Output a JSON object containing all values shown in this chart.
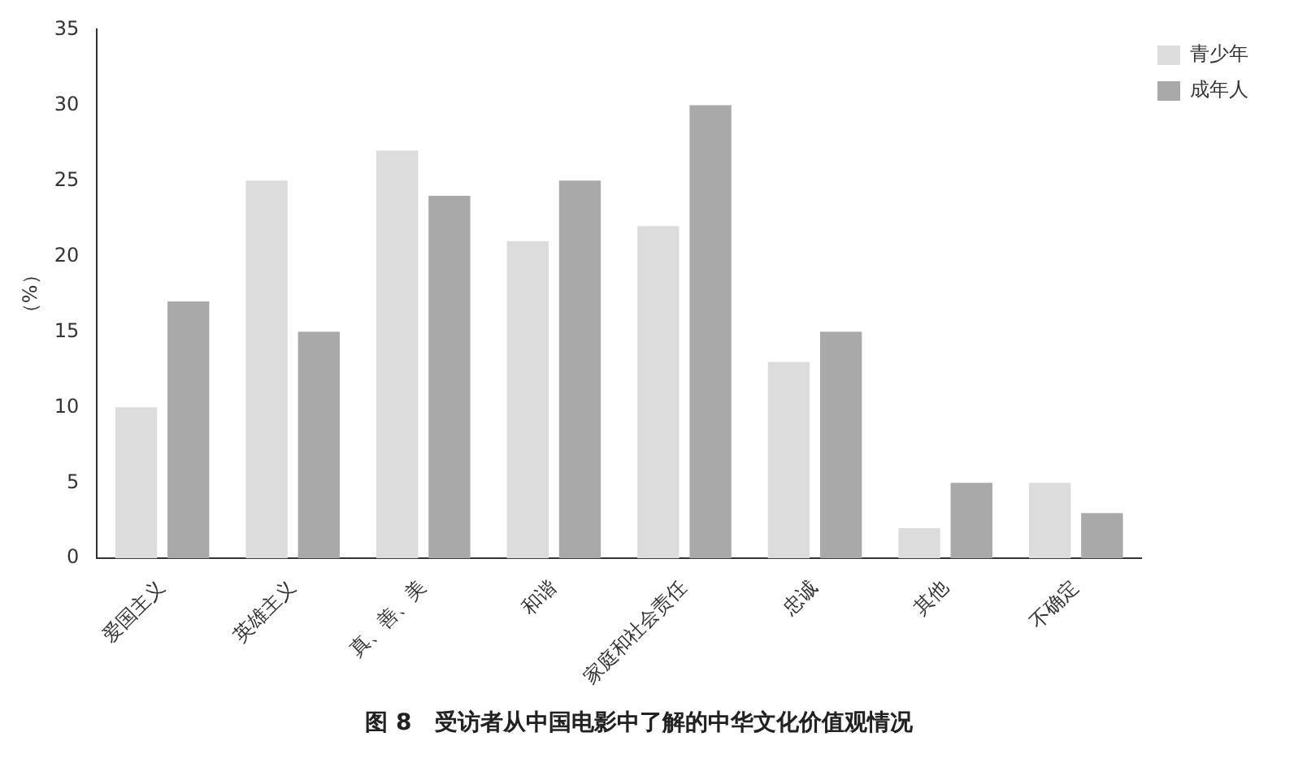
{
  "chart_data": {
    "type": "bar",
    "title": "图 8　受访者从中国电影中了解的中华文化价值观情况",
    "ylabel": "（%）",
    "categories": [
      "爱国主义",
      "英雄主义",
      "真、善、美",
      "和谐",
      "家庭和社会责任",
      "忠诚",
      "其他",
      "不确定"
    ],
    "series": [
      {
        "name": "青少年",
        "color": "#dcdcdc",
        "values": [
          10,
          25,
          27,
          21,
          22,
          13,
          2,
          5
        ]
      },
      {
        "name": "成年人",
        "color": "#a9a9a9",
        "values": [
          17,
          15,
          24,
          25,
          30,
          15,
          5,
          3
        ]
      }
    ],
    "ylim": [
      0,
      35
    ],
    "yticks": [
      0,
      5,
      10,
      15,
      20,
      25,
      30,
      35
    ],
    "grid": false,
    "legend": "top right"
  }
}
